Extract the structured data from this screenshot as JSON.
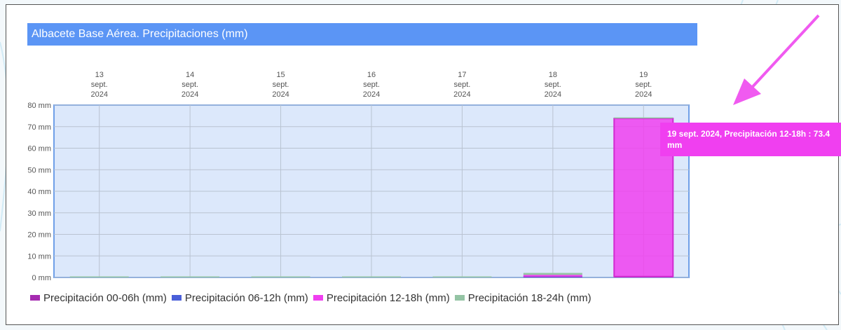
{
  "colors": {
    "title_bg": "#5b95f5",
    "plot_bg": "#dce8fb",
    "plot_border": "#6f9fe8",
    "grid": "#b9c3d1",
    "highlight_bar": "#f03ff0",
    "tooltip_bg": "#f03ff0",
    "arrow": "#f05af0"
  },
  "header": {
    "title": "Albacete Base Aérea. Precipitaciones (mm)"
  },
  "tooltip": {
    "text": "19 sept. 2024, Precipitación 12-18h : 73.4 mm",
    "arrow_icon": "arrow-down-left-icon"
  },
  "chart_data": {
    "type": "bar",
    "stacked": true,
    "title": "Albacete Base Aérea. Precipitaciones (mm)",
    "categories": [
      {
        "day": "13",
        "month": "sept.",
        "year": "2024"
      },
      {
        "day": "14",
        "month": "sept.",
        "year": "2024"
      },
      {
        "day": "15",
        "month": "sept.",
        "year": "2024"
      },
      {
        "day": "16",
        "month": "sept.",
        "year": "2024"
      },
      {
        "day": "17",
        "month": "sept.",
        "year": "2024"
      },
      {
        "day": "18",
        "month": "sept.",
        "year": "2024"
      },
      {
        "day": "19",
        "month": "sept.",
        "year": "2024"
      }
    ],
    "x_axis_position": "top",
    "ylim": [
      0,
      80
    ],
    "y_ticks": [
      "0 mm",
      "10 mm",
      "20 mm",
      "30 mm",
      "40 mm",
      "50 mm",
      "60 mm",
      "70 mm",
      "80 mm"
    ],
    "y_tick_values": [
      0,
      10,
      20,
      30,
      40,
      50,
      60,
      70,
      80
    ],
    "grid": true,
    "legend_position": "bottom-left",
    "series": [
      {
        "name": "Precipitación 00-06h (mm)",
        "color": "#a52bb0",
        "values": [
          0,
          0,
          0,
          0,
          0,
          0.2,
          0.2
        ]
      },
      {
        "name": "Precipitación 06-12h (mm)",
        "color": "#4a5fd9",
        "values": [
          0,
          0,
          0,
          0,
          0,
          0.2,
          0.2
        ]
      },
      {
        "name": "Precipitación 12-18h (mm)",
        "color": "#f03ff0",
        "values": [
          0,
          0,
          0,
          0,
          0,
          0.8,
          73.4
        ]
      },
      {
        "name": "Precipitación 18-24h (mm)",
        "color": "#94c4a4",
        "values": [
          0.4,
          0.4,
          0.4,
          0.4,
          0.4,
          0.9,
          0.4
        ]
      }
    ]
  }
}
